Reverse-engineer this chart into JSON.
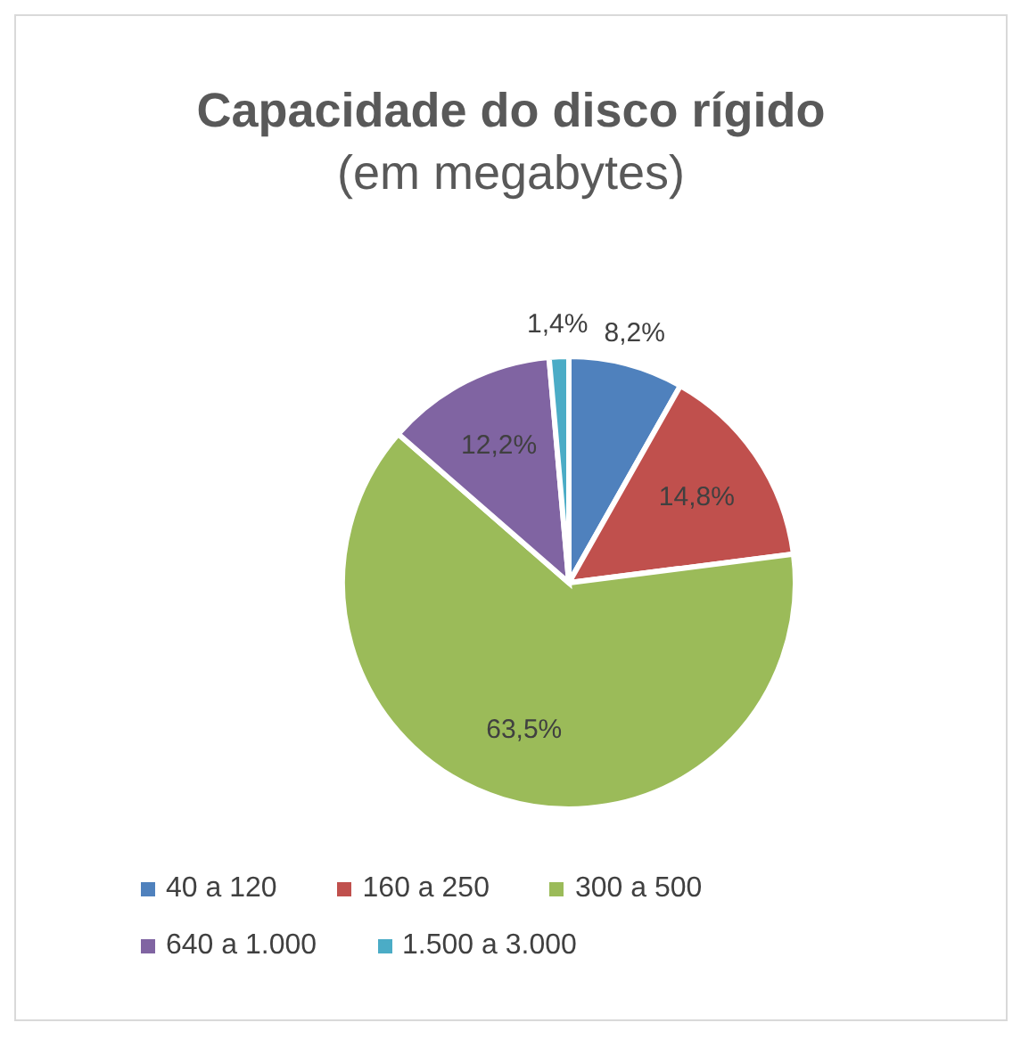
{
  "chart_data": {
    "type": "pie",
    "title": "Capacidade do disco rígido",
    "subtitle": "(em megabytes)",
    "categories": [
      "40 a 120",
      "160 a 250",
      "300 a 500",
      "640 a 1.000",
      "1.500 a 3.000"
    ],
    "values": [
      8.2,
      14.8,
      63.5,
      12.2,
      1.4
    ],
    "value_labels": [
      "8,2%",
      "14,8%",
      "63,5%",
      "12,2%",
      "1,4%"
    ],
    "colors": [
      "#4f81bd",
      "#c0504d",
      "#9bbb59",
      "#8064a2",
      "#4bacc6"
    ],
    "legend": "bottom"
  }
}
